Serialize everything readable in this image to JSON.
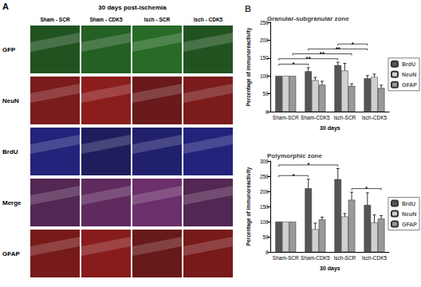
{
  "panel_a": {
    "label": "A",
    "title": "30 days post-ischemia",
    "columns": [
      "Sham - SCR",
      "Sham - CDK5",
      "Isch - SCR",
      "Isch - CDK5"
    ],
    "rows": [
      {
        "label": "GFP",
        "color": "#2f8a2f"
      },
      {
        "label": "NeuN",
        "color": "#b52222"
      },
      {
        "label": "BrdU",
        "color": "#2a2aa0"
      },
      {
        "label": "Merge",
        "color": "#8a3a8a"
      },
      {
        "label": "GFAP",
        "color": "#b02020"
      }
    ]
  },
  "chart_data": [
    {
      "type": "bar",
      "label": "B",
      "title": "Granular-subgranular zone",
      "categories": [
        "Sham-SCR",
        "Sham-CDK5",
        "Isch-SCR",
        "Isch-CDK5"
      ],
      "series": [
        {
          "name": "BrdU",
          "color": "#555555",
          "values": [
            100,
            113,
            130,
            93
          ],
          "errors": [
            0,
            10,
            8,
            8
          ]
        },
        {
          "name": "NeuN",
          "color": "#d0d0d0",
          "values": [
            100,
            88,
            115,
            97
          ],
          "errors": [
            0,
            8,
            20,
            8
          ]
        },
        {
          "name": "GFAP",
          "color": "#999999",
          "values": [
            100,
            75,
            72,
            66
          ],
          "errors": [
            0,
            10,
            6,
            8
          ]
        }
      ],
      "x_label": "30 days",
      "y_label": "Percentage of immunoreactivity",
      "ylim": [
        0,
        250
      ],
      "yticks": [
        0,
        50,
        100,
        150,
        200,
        250
      ],
      "legend": "right",
      "significance": [
        {
          "from": [
            0,
            0
          ],
          "to": [
            1,
            0
          ],
          "label": "*"
        },
        {
          "from": [
            0,
            0
          ],
          "to": [
            2,
            0
          ],
          "label": "**"
        },
        {
          "from": [
            0,
            2
          ],
          "to": [
            2,
            2
          ],
          "label": "**"
        },
        {
          "from": [
            1,
            0
          ],
          "to": [
            3,
            0
          ],
          "label": "**"
        },
        {
          "from": [
            2,
            0
          ],
          "to": [
            3,
            0
          ],
          "label": "*"
        }
      ]
    },
    {
      "type": "bar",
      "title": "Polymorphic zone",
      "categories": [
        "Sham-SCR",
        "Sham-CDK5",
        "Isch-SCR",
        "Isch-CDK5"
      ],
      "series": [
        {
          "name": "BrdU",
          "color": "#555555",
          "values": [
            100,
            210,
            240,
            155
          ],
          "errors": [
            0,
            30,
            35,
            40
          ]
        },
        {
          "name": "NeuN",
          "color": "#d0d0d0",
          "values": [
            100,
            75,
            117,
            97
          ],
          "errors": [
            0,
            20,
            10,
            25
          ]
        },
        {
          "name": "GFAP",
          "color": "#999999",
          "values": [
            100,
            107,
            172,
            110
          ],
          "errors": [
            0,
            8,
            25,
            10
          ]
        }
      ],
      "x_label": "30 days",
      "y_label": "Percentage of immunoreactivity",
      "ylim": [
        0,
        300
      ],
      "yticks": [
        0,
        50,
        100,
        150,
        200,
        250,
        300
      ],
      "legend": "right",
      "significance": [
        {
          "from": [
            0,
            0
          ],
          "to": [
            1,
            0
          ],
          "label": "*"
        },
        {
          "from": [
            0,
            0
          ],
          "to": [
            2,
            0
          ],
          "label": "*"
        },
        {
          "from": [
            2,
            2
          ],
          "to": [
            3,
            2
          ],
          "label": "*"
        }
      ]
    }
  ]
}
